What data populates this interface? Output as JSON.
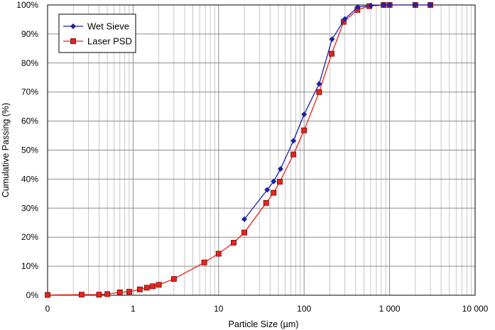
{
  "chart_data": {
    "type": "scatter",
    "xscale": "log",
    "xlim": [
      0.1,
      10000
    ],
    "ylim": [
      0,
      100
    ],
    "xlabel": "Particle Size (µm)",
    "ylabel": "Cumulative  Passing  (%)",
    "x_tick_labels": [
      "0",
      "1",
      "10",
      "100",
      "1 000",
      "10 000"
    ],
    "y_tick_labels": [
      "0%",
      "10%",
      "20%",
      "30%",
      "40%",
      "50%",
      "60%",
      "70%",
      "80%",
      "90%",
      "100%"
    ],
    "grid": true,
    "legend_position": "top-left",
    "series": [
      {
        "name": "Wet Sieve",
        "color": "#1f1fa8",
        "marker": "diamond",
        "x": [
          20,
          37,
          44,
          53,
          75,
          100,
          150,
          212,
          300,
          425,
          600,
          850,
          1000,
          2000,
          3000
        ],
        "y": [
          26.2,
          36.3,
          39.2,
          43.5,
          53.2,
          62.3,
          72.8,
          88.2,
          95.2,
          99.3,
          99.8,
          100,
          100,
          100,
          100
        ]
      },
      {
        "name": "Laser PSD",
        "color": "#e8221e",
        "marker": "square",
        "x": [
          0.1,
          0.25,
          0.4,
          0.5,
          0.7,
          0.9,
          1.2,
          1.45,
          1.7,
          2.0,
          3.0,
          6.8,
          10,
          15,
          20,
          36,
          44,
          52,
          75,
          100,
          150,
          210,
          290,
          420,
          580,
          850,
          1000,
          2000,
          3000
        ],
        "y": [
          0.1,
          0.2,
          0.2,
          0.4,
          1.0,
          1.2,
          2.0,
          2.6,
          3.1,
          3.6,
          5.6,
          11.3,
          14.3,
          18.1,
          21.6,
          31.8,
          35.3,
          39.1,
          48.5,
          56.8,
          70.0,
          83.2,
          94.2,
          98.3,
          99.6,
          100,
          100,
          100,
          100
        ]
      }
    ]
  }
}
